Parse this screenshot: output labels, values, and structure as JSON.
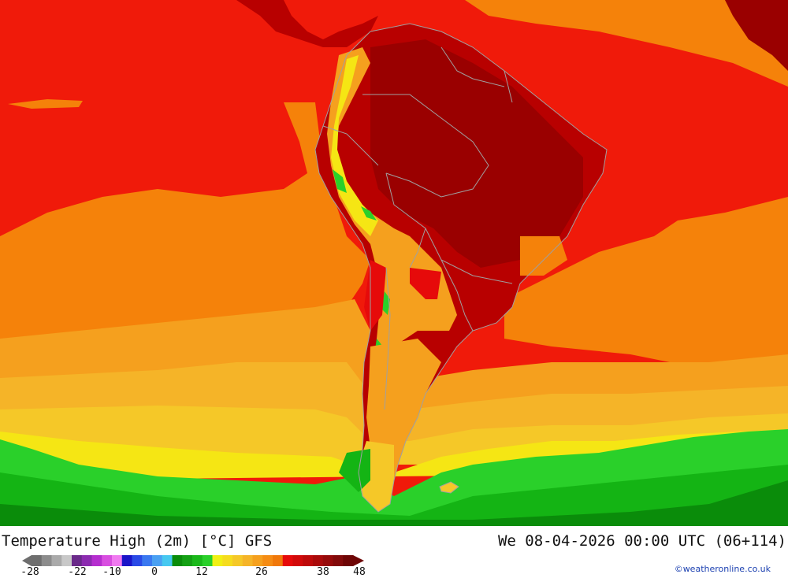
{
  "header": {
    "title": "Temperature High (2m) [°C] GFS",
    "datetime": "We 08-04-2026 00:00 UTC (06+114)"
  },
  "legend": {
    "colors": [
      "#6e6e6e",
      "#8c8c8c",
      "#aaaaaa",
      "#c8c8c8",
      "#6a2a8a",
      "#8c2bb0",
      "#b52ecf",
      "#d84ee0",
      "#f07af0",
      "#1a14c8",
      "#2a4ae6",
      "#3a78f0",
      "#4aa0f2",
      "#46c8f0",
      "#0a8c0a",
      "#14a014",
      "#1ab81a",
      "#2ad02a",
      "#f0f014",
      "#f5dc1e",
      "#f5c828",
      "#f5b428",
      "#f5a01e",
      "#f58c14",
      "#f0780a",
      "#e60a0a",
      "#d20a0a",
      "#be0a0a",
      "#aa0a0a",
      "#960a0a",
      "#820a0a",
      "#6e0505"
    ],
    "tick_labels": [
      "-28",
      "-22",
      "-10",
      "0",
      "12",
      "26",
      "38",
      "48"
    ]
  },
  "credit": "©weatheronline.co.uk",
  "palette": {
    "ocean_red": "#f01a0a",
    "land_darkred": "#b80000",
    "deep_darkred": "#9a0000",
    "orange": "#f5820a",
    "light_orange": "#f5a01e",
    "amber": "#f5b428",
    "yellow_orange": "#f5c828",
    "yellow": "#f5e614",
    "bright_yellow": "#f0f014",
    "green": "#2ad02a",
    "mid_green": "#14b414",
    "dark_green": "#0a8c0a",
    "border_gray": "#a0a0a0"
  }
}
